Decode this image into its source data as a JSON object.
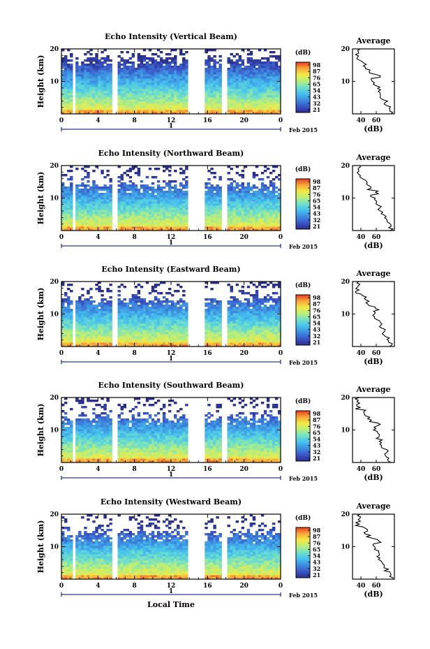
{
  "chart_data": [
    {
      "type": "heatmap",
      "title": "Echo Intensity (Vertical Beam)",
      "ylabel": "Height (km)",
      "y_ticks": [
        "10",
        "20"
      ],
      "x_ticks": [
        "0",
        "4",
        "8",
        "12",
        "16",
        "20",
        "0"
      ],
      "date_label": "Feb 2015",
      "day_label": "1",
      "xlim": [
        0,
        24
      ],
      "ylim": [
        0,
        20
      ],
      "colorbar": {
        "unit": "(dB)",
        "ticks": [
          "98",
          "87",
          "76",
          "65",
          "54",
          "43",
          "32",
          "21"
        ]
      },
      "data_gaps_hours": [
        [
          1.1,
          1.5
        ],
        [
          5.6,
          6.0
        ],
        [
          14.0,
          15.6
        ],
        [
          17.4,
          18.0
        ]
      ],
      "profile": {
        "title": "Average",
        "xlabel": "(dB)",
        "x_ticks": [
          "40",
          "60"
        ],
        "y_ticks": [
          "10",
          "20"
        ]
      }
    },
    {
      "type": "heatmap",
      "title": "Echo Intensity (Northward Beam)",
      "ylabel": "Height (km)",
      "y_ticks": [
        "10",
        "20"
      ],
      "x_ticks": [
        "0",
        "4",
        "8",
        "12",
        "16",
        "20",
        "0"
      ],
      "date_label": "Feb 2015",
      "day_label": "1",
      "xlim": [
        0,
        24
      ],
      "ylim": [
        0,
        20
      ],
      "colorbar": {
        "unit": "(dB)",
        "ticks": [
          "98",
          "87",
          "76",
          "65",
          "54",
          "43",
          "32",
          "21"
        ]
      },
      "data_gaps_hours": [
        [
          1.1,
          1.5
        ],
        [
          5.6,
          6.0
        ],
        [
          14.0,
          15.6
        ],
        [
          17.4,
          18.0
        ]
      ],
      "profile": {
        "title": "Average",
        "xlabel": "(dB)",
        "x_ticks": [
          "40",
          "60"
        ],
        "y_ticks": [
          "10",
          "20"
        ]
      }
    },
    {
      "type": "heatmap",
      "title": "Echo Intensity (Eastward Beam)",
      "ylabel": "Height (km)",
      "y_ticks": [
        "10",
        "20"
      ],
      "x_ticks": [
        "0",
        "4",
        "8",
        "12",
        "16",
        "20",
        "0"
      ],
      "date_label": "Feb 2015",
      "day_label": "1",
      "xlim": [
        0,
        24
      ],
      "ylim": [
        0,
        20
      ],
      "colorbar": {
        "unit": "(dB)",
        "ticks": [
          "98",
          "87",
          "76",
          "65",
          "54",
          "43",
          "32",
          "21"
        ]
      },
      "data_gaps_hours": [
        [
          1.1,
          1.5
        ],
        [
          5.6,
          6.0
        ],
        [
          14.0,
          15.6
        ],
        [
          17.4,
          18.0
        ]
      ],
      "profile": {
        "title": "Average",
        "xlabel": "(dB)",
        "x_ticks": [
          "40",
          "60"
        ],
        "y_ticks": [
          "10",
          "20"
        ]
      }
    },
    {
      "type": "heatmap",
      "title": "Echo Intensity (Southward Beam)",
      "ylabel": "Height (km)",
      "y_ticks": [
        "10",
        "20"
      ],
      "x_ticks": [
        "0",
        "4",
        "8",
        "12",
        "16",
        "20",
        "0"
      ],
      "date_label": "Feb 2015",
      "day_label": "1",
      "xlim": [
        0,
        24
      ],
      "ylim": [
        0,
        20
      ],
      "colorbar": {
        "unit": "(dB)",
        "ticks": [
          "98",
          "87",
          "76",
          "65",
          "54",
          "43",
          "32",
          "21"
        ]
      },
      "data_gaps_hours": [
        [
          1.1,
          1.5
        ],
        [
          5.6,
          6.0
        ],
        [
          14.0,
          15.6
        ],
        [
          17.4,
          18.0
        ]
      ],
      "profile": {
        "title": "Average",
        "xlabel": "(dB)",
        "x_ticks": [
          "40",
          "60"
        ],
        "y_ticks": [
          "10",
          "20"
        ]
      }
    },
    {
      "type": "heatmap",
      "title": "Echo Intensity (Westward Beam)",
      "ylabel": "Height (km)",
      "y_ticks": [
        "10",
        "20"
      ],
      "x_ticks": [
        "0",
        "4",
        "8",
        "12",
        "16",
        "20",
        "0"
      ],
      "date_label": "Feb 2015",
      "day_label": "1",
      "xlim": [
        0,
        24
      ],
      "ylim": [
        0,
        20
      ],
      "xlabel": "Local Time",
      "colorbar": {
        "unit": "(dB)",
        "ticks": [
          "98",
          "87",
          "76",
          "65",
          "54",
          "43",
          "32",
          "21"
        ]
      },
      "data_gaps_hours": [
        [
          1.1,
          1.5
        ],
        [
          5.6,
          6.0
        ],
        [
          14.0,
          15.6
        ],
        [
          17.4,
          18.0
        ]
      ],
      "profile": {
        "title": "Average",
        "xlabel": "(dB)",
        "x_ticks": [
          "40",
          "60"
        ],
        "y_ticks": [
          "10",
          "20"
        ]
      }
    }
  ],
  "colors": {
    "colormap": [
      "#2b2f8c",
      "#3a56c8",
      "#3d8ee0",
      "#46c0ef",
      "#6fe0c8",
      "#b8ee7c",
      "#f2ea44",
      "#f8a83a",
      "#ea3a22"
    ],
    "axis": "#000000",
    "time_bar": "#2a3a8c"
  }
}
